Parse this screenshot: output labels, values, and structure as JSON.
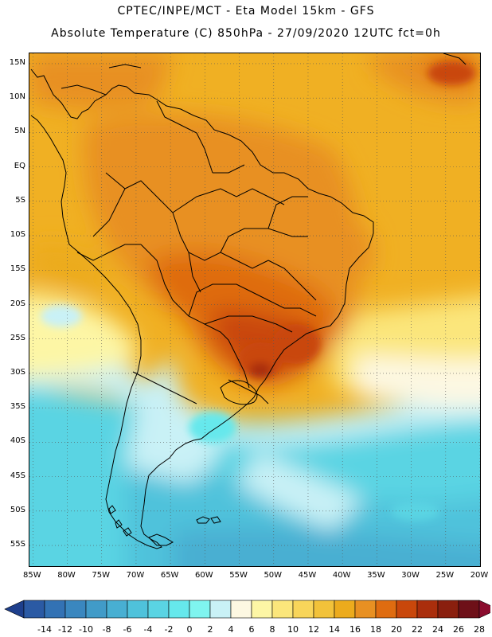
{
  "header": {
    "line1": "CPTEC/INPE/MCT -  Eta Model 15km - GFS",
    "line2": "Absolute Temperature (C) 850hPa - 27/09/2020 12UTC fct=0h"
  },
  "map": {
    "lat_labels": [
      "15N",
      "10N",
      "5N",
      "EQ",
      "5S",
      "10S",
      "15S",
      "20S",
      "25S",
      "30S",
      "35S",
      "40S",
      "45S",
      "50S",
      "55S"
    ],
    "lon_labels": [
      "85W",
      "80W",
      "75W",
      "70W",
      "65W",
      "60W",
      "55W",
      "50W",
      "45W",
      "40W",
      "35W",
      "30W",
      "25W",
      "20W"
    ],
    "lat_values": [
      15,
      10,
      5,
      0,
      -5,
      -10,
      -15,
      -20,
      -25,
      -30,
      -35,
      -40,
      -45,
      -50,
      -55
    ],
    "lon_values": [
      -85,
      -80,
      -75,
      -70,
      -65,
      -60,
      -55,
      -50,
      -45,
      -40,
      -35,
      -30,
      -25,
      -20
    ],
    "lat_range": [
      -58,
      16.5
    ],
    "lon_range": [
      -85.5,
      -20
    ],
    "grid": "dotted",
    "coastline_color": "#000000"
  },
  "colorbar": {
    "labels": [
      "-14",
      "-12",
      "-10",
      "-8",
      "-6",
      "-4",
      "-2",
      "0",
      "2",
      "4",
      "6",
      "8",
      "10",
      "12",
      "14",
      "16",
      "18",
      "20",
      "22",
      "24",
      "26",
      "28"
    ],
    "colors": [
      "#1e3f8c",
      "#2b5aa4",
      "#3372b4",
      "#3a87bf",
      "#419bc8",
      "#48afd2",
      "#4fc2db",
      "#5ad4e3",
      "#66e8ec",
      "#7ff4ef",
      "#c9f1f6",
      "#fdf8e2",
      "#fdf6a5",
      "#fbe67b",
      "#f8d55a",
      "#f2c23a",
      "#ecab1d",
      "#e89022",
      "#df6c10",
      "#c9470b",
      "#aa2e0c",
      "#8a1f0e",
      "#6e1018",
      "#8a0c2e"
    ],
    "extend": "both"
  }
}
